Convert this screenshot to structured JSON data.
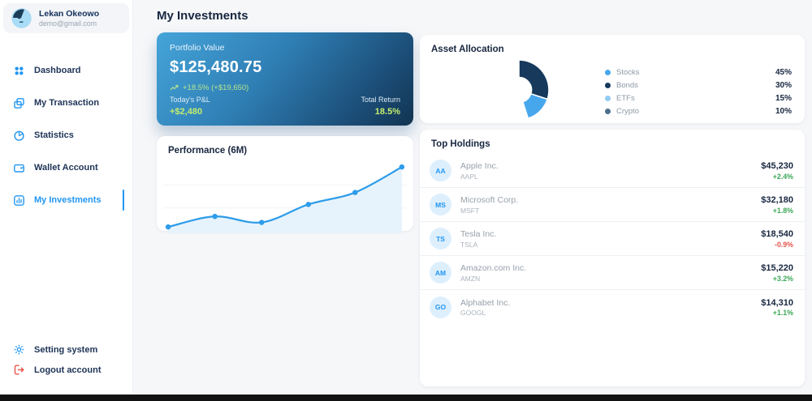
{
  "page_title": "My Investments",
  "sidebar": {
    "user": {
      "name": "Lekan Okeowo",
      "email": "demo@gmail.com"
    },
    "items": [
      {
        "label": "Dashboard"
      },
      {
        "label": "My Transaction"
      },
      {
        "label": "Statistics"
      },
      {
        "label": "Wallet Account"
      },
      {
        "label": "My Investments",
        "active": true
      }
    ],
    "footer_items": [
      {
        "label": "Setting system"
      },
      {
        "label": "Logout account"
      }
    ]
  },
  "portfolio_card": {
    "label": "Portfolio Value",
    "value": "$125,480.75",
    "change": "+18.5% (+$19,650)",
    "today_pnl_label": "Today's P&L",
    "today_pnl_value": "+$2,480",
    "total_return_label": "Total Return",
    "total_return_value": "18.5%"
  },
  "asset_allocation": {
    "title": "Asset Allocation",
    "legend": [
      {
        "label": "Stocks",
        "pct": "45%",
        "color": "#47a7ec"
      },
      {
        "label": "Bonds",
        "pct": "30%",
        "color": "#16395c"
      },
      {
        "label": "ETFs",
        "pct": "15%",
        "color": "#92cbf4"
      },
      {
        "label": "Crypto",
        "pct": "10%",
        "color": "#4e6f8c"
      }
    ]
  },
  "performance_card": {
    "title": "Performance (6M)"
  },
  "top_holdings": {
    "title": "Top Holdings",
    "rows": [
      {
        "initials": "AA",
        "name": "Apple Inc.",
        "ticker": "AAPL",
        "value": "$45,230",
        "change": "+2.4%"
      },
      {
        "initials": "MS",
        "name": "Microsoft Corp.",
        "ticker": "MSFT",
        "value": "$32,180",
        "change": "+1.8%"
      },
      {
        "initials": "TS",
        "name": "Tesla Inc.",
        "ticker": "TSLA",
        "value": "$18,540",
        "change": "-0.9%"
      },
      {
        "initials": "AM",
        "name": "Amazon.com Inc.",
        "ticker": "AMZN",
        "value": "$15,220",
        "change": "+3.2%"
      },
      {
        "initials": "GO",
        "name": "Alphabet Inc.",
        "ticker": "GOOGL",
        "value": "$14,310",
        "change": "+1.1%"
      }
    ]
  },
  "colors": {
    "accent": "#2196f3",
    "navy_text": "#17263f",
    "positive": "#3aa757",
    "negative": "#e5544b",
    "lime_on_card": "#c4ec6e",
    "card_gradient_start": "#45a4d9",
    "card_gradient_end": "#123450"
  },
  "chart_data": [
    {
      "type": "pie",
      "title": "Asset Allocation",
      "donut": true,
      "labels": [
        "Stocks",
        "Bonds",
        "ETFs",
        "Crypto"
      ],
      "values": [
        45,
        30,
        15,
        10
      ],
      "colors": [
        "#47a7ec",
        "#16395c",
        "#92cbf4",
        "#4e6f8c"
      ],
      "draw_order_clockwise_from_top": [
        "ETFs",
        "Crypto",
        "Stocks",
        "Bonds"
      ],
      "legend_position": "right",
      "data_labels": [
        "45%",
        "30%",
        "15%",
        "10%"
      ]
    },
    {
      "type": "line",
      "title": "Performance (6M)",
      "x": [
        1,
        2,
        3,
        4,
        5,
        6
      ],
      "values": [
        100,
        107,
        103,
        115,
        123,
        140
      ],
      "xlabel": "",
      "ylabel": "",
      "axis_tick_labels_visible": false,
      "grid": "faint horizontal lines",
      "line_color": "#2d9cea",
      "area_fill": "#e7f3fc",
      "markers": true
    }
  ]
}
